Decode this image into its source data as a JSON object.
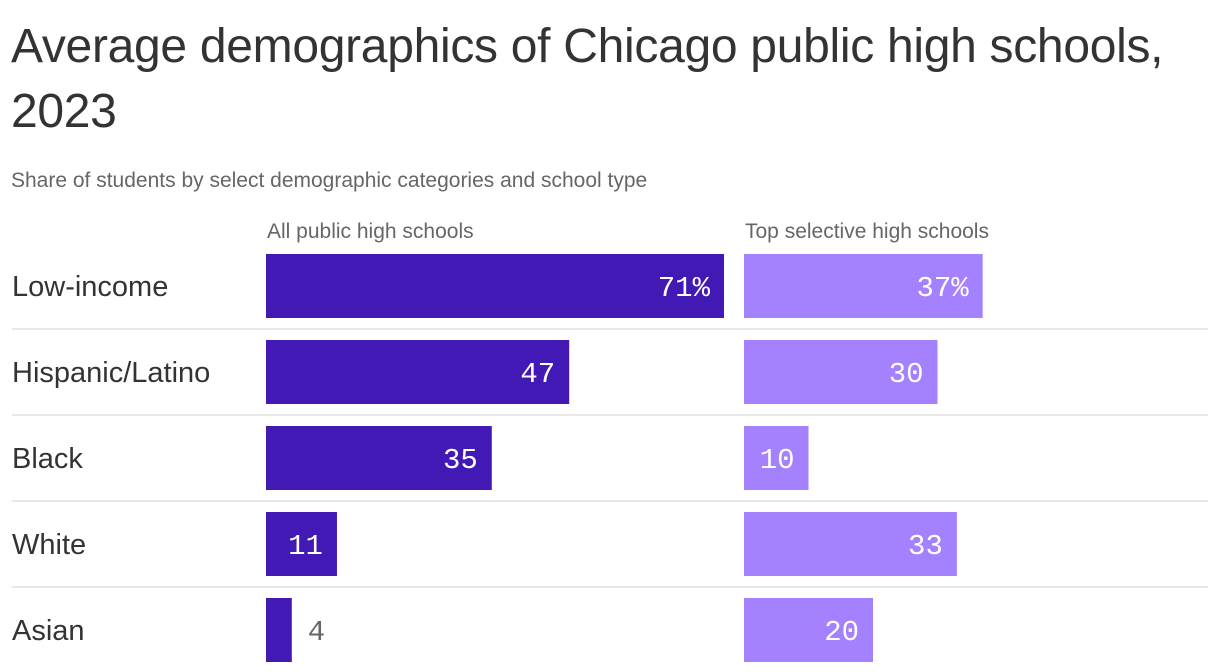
{
  "title": "Average demographics of Chicago public high schools, 2023",
  "subtitle": "Share of students by select demographic categories and school type",
  "colors": {
    "all_public": "#4219b5",
    "top_selective": "#a381ff",
    "label_inside": "#ffffff",
    "label_outside": "#666666",
    "divider": "#e0e0e0"
  },
  "chart_data": {
    "type": "bar",
    "orientation": "horizontal",
    "categories": [
      "Low-income",
      "Hispanic/Latino",
      "Black",
      "White",
      "Asian"
    ],
    "series": [
      {
        "name": "All public high schools",
        "values": [
          71,
          47,
          35,
          11,
          4
        ],
        "labels": [
          "71%",
          "47",
          "35",
          "11",
          "4"
        ]
      },
      {
        "name": "Top selective high schools",
        "values": [
          37,
          30,
          10,
          33,
          20
        ],
        "labels": [
          "37%",
          "30",
          "10",
          "33",
          "20"
        ]
      }
    ],
    "xlim": [
      0,
      71
    ],
    "grid": false,
    "legend": "column-headers"
  }
}
